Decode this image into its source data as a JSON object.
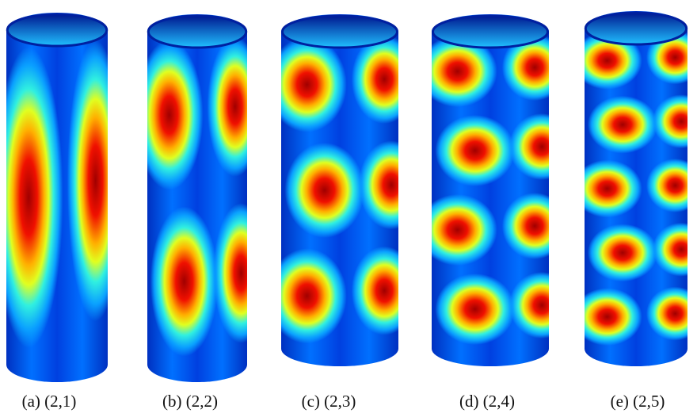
{
  "figure": {
    "captions": [
      "(a) (2,1)",
      "(b) (2,2)",
      "(c) (2,3)",
      "(d) (2,4)",
      "(e) (2,5)"
    ]
  }
}
